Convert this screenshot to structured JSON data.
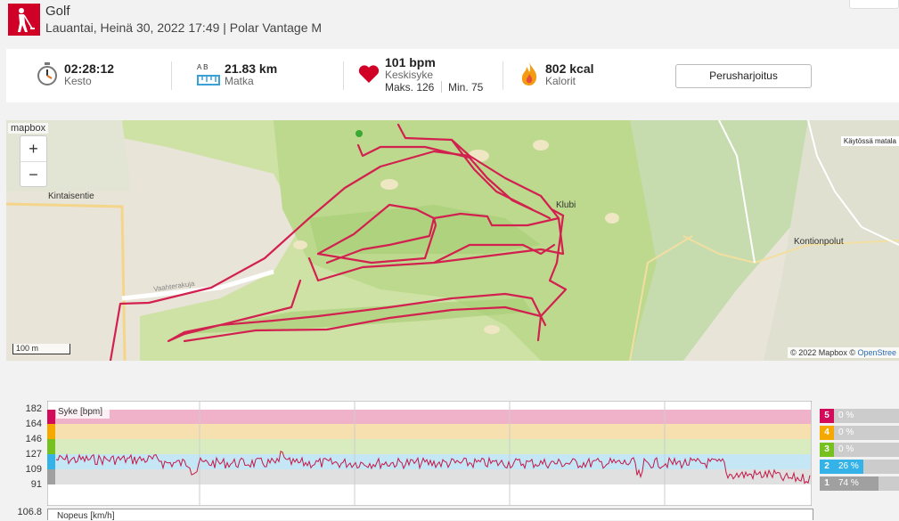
{
  "header": {
    "sport": "Golf",
    "subtitle": "Lauantai, Heinä 30, 2022 17:49 | Polar Vantage M",
    "sport_icon": "golfer-icon",
    "accent": "#d10027"
  },
  "summary": {
    "duration": {
      "value": "02:28:12",
      "label": "Kesto",
      "icon": "stopwatch-icon"
    },
    "distance": {
      "value": "21.83 km",
      "label": "Matka",
      "icon": "ruler-icon",
      "ab": "A  B"
    },
    "heart_rate": {
      "value": "101 bpm",
      "label": "Keskisyke",
      "max": "Maks. 126",
      "min": "Min. 75",
      "icon": "heart-icon"
    },
    "calories": {
      "value": "802 kcal",
      "label": "Kalorit",
      "icon": "flame-icon"
    },
    "training_button": "Perusharjoitus"
  },
  "map": {
    "mapbox": "mapbox",
    "zoom_in": "+",
    "zoom_out": "−",
    "scale": "100 m",
    "legend": "Käytössä matala",
    "attribution_prefix": "© 2022 Mapbox ©",
    "attribution_link": "OpenStree",
    "labels": {
      "kintaisentie": "Kintaisentie",
      "klubi": "Klubi",
      "kontionpolut": "Kontionpolut",
      "vaahtera": "Vaahterakuja"
    }
  },
  "hr_chart": {
    "y_ticks": [
      "182",
      "164",
      "146",
      "127",
      "109",
      "91"
    ],
    "series_label": "Syke [bpm]",
    "zones": [
      {
        "zone": "5",
        "percent": "0 %",
        "color": "#d10a5a",
        "band": "#f0b2c8"
      },
      {
        "zone": "4",
        "percent": "0 %",
        "color": "#f5a900",
        "band": "#f7e0b0"
      },
      {
        "zone": "3",
        "percent": "0 %",
        "color": "#76c020",
        "band": "#d9ecc0"
      },
      {
        "zone": "2",
        "percent": "26 %",
        "color": "#35b3e8",
        "band": "#c5e6f5"
      },
      {
        "zone": "1",
        "percent": "74 %",
        "color": "#a0a0a0",
        "band": "#e0e0e0"
      }
    ],
    "next_tick": "106.8",
    "next_label": "Nopeus [km/h]"
  }
}
